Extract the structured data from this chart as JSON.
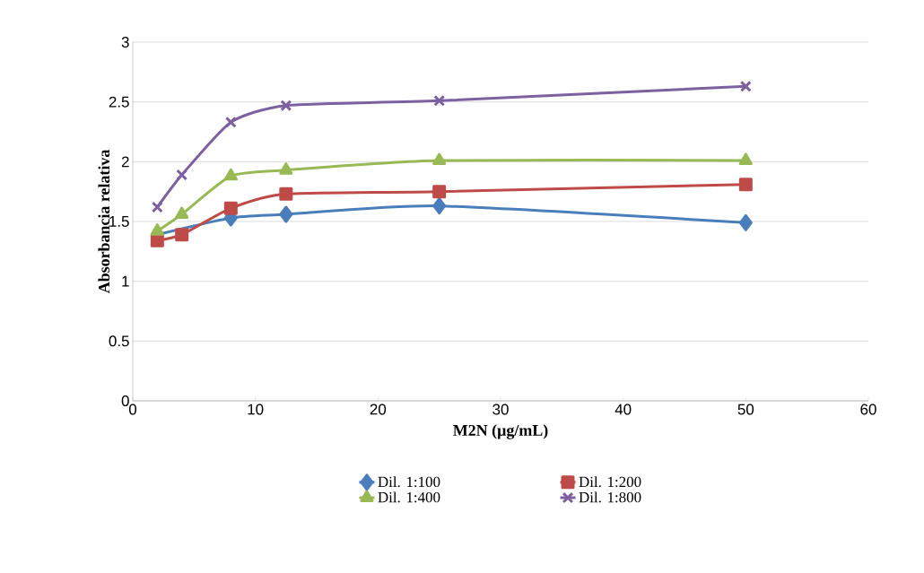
{
  "chart_data": {
    "type": "line",
    "xlabel": "M2N (µg/mL)",
    "ylabel": "Absorbancia  relativa",
    "x": [
      2,
      4,
      8,
      12.5,
      25,
      50
    ],
    "series": [
      {
        "name": "Dil. 1:100",
        "color": "#4a7ebb",
        "marker": "diamond",
        "values": [
          1.39,
          null,
          1.53,
          1.56,
          1.63,
          1.49
        ]
      },
      {
        "name": "Dil. 1:200",
        "color": "#be4b48",
        "marker": "square",
        "values": [
          1.34,
          1.39,
          1.61,
          1.73,
          1.75,
          1.81
        ]
      },
      {
        "name": "Dil. 1:400",
        "color": "#98b954",
        "marker": "triangle",
        "values": [
          1.42,
          1.56,
          1.88,
          1.93,
          2.01,
          2.01
        ]
      },
      {
        "name": "Dil. 1:800",
        "color": "#7d60a0",
        "marker": "cross",
        "values": [
          1.62,
          1.89,
          2.33,
          2.47,
          2.51,
          2.63
        ]
      }
    ],
    "xlim": [
      0,
      60
    ],
    "xticks": [
      0,
      10,
      20,
      30,
      40,
      50,
      60
    ],
    "ylim": [
      0,
      3
    ],
    "yticks": [
      0,
      0.5,
      1,
      1.5,
      2,
      2.5,
      3
    ],
    "grid": "y",
    "legend": "bottom"
  }
}
